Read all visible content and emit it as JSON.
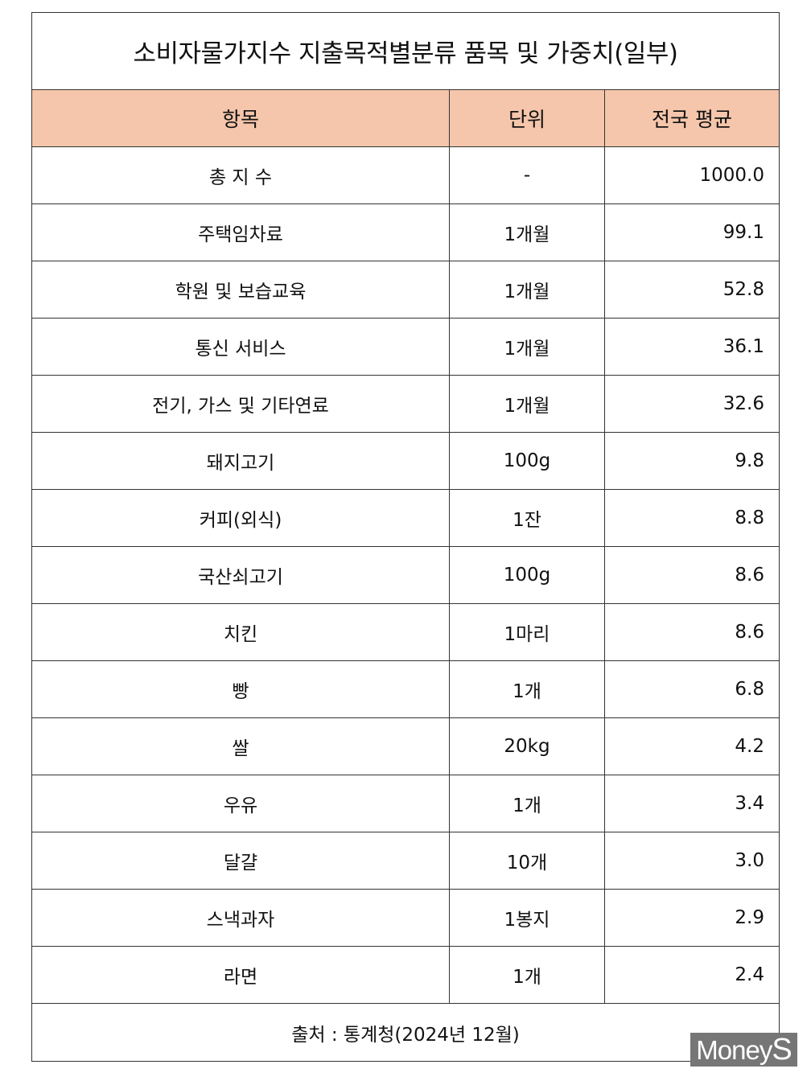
{
  "title": "소비자물가지수 지출목적별분류 품목 및 가중치(일부)",
  "columns": [
    "항목",
    "단위",
    "전국 평균"
  ],
  "rows": [
    {
      "item": "총 지 수",
      "unit": "-",
      "avg": "1000.0"
    },
    {
      "item": "주택임차료",
      "unit": "1개월",
      "avg": "99.1"
    },
    {
      "item": "학원 및 보습교육",
      "unit": "1개월",
      "avg": "52.8"
    },
    {
      "item": "통신 서비스",
      "unit": "1개월",
      "avg": "36.1"
    },
    {
      "item": "전기, 가스 및 기타연료",
      "unit": "1개월",
      "avg": "32.6"
    },
    {
      "item": "돼지고기",
      "unit": "100g",
      "avg": "9.8"
    },
    {
      "item": "커피(외식)",
      "unit": "1잔",
      "avg": "8.8"
    },
    {
      "item": "국산쇠고기",
      "unit": "100g",
      "avg": "8.6"
    },
    {
      "item": "치킨",
      "unit": "1마리",
      "avg": "8.6"
    },
    {
      "item": "빵",
      "unit": "1개",
      "avg": "6.8"
    },
    {
      "item": "쌀",
      "unit": "20kg",
      "avg": "4.2"
    },
    {
      "item": "우유",
      "unit": "1개",
      "avg": "3.4"
    },
    {
      "item": "달걀",
      "unit": "10개",
      "avg": "3.0"
    },
    {
      "item": "스낵과자",
      "unit": "1봉지",
      "avg": "2.9"
    },
    {
      "item": "라면",
      "unit": "1개",
      "avg": "2.4"
    }
  ],
  "source": "출처 : 통계청(2024년 12월)",
  "watermark": "MoneyS",
  "colors": {
    "header_bg": "#f5c6ab",
    "watermark_bg": "#767676"
  }
}
